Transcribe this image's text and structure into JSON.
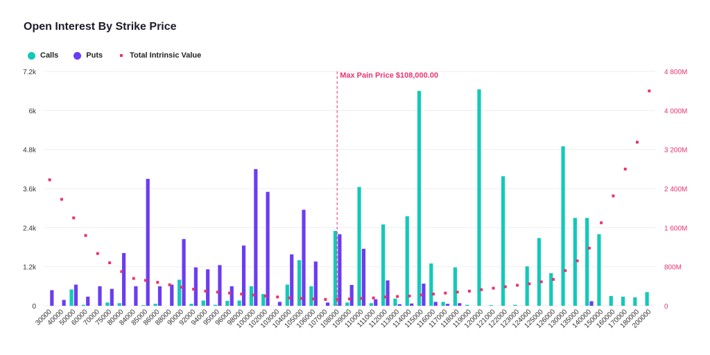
{
  "chart_data": {
    "type": "bar",
    "title": "Open Interest By Strike Price",
    "categories": [
      "30000",
      "40000",
      "50000",
      "60000",
      "70000",
      "75000",
      "80000",
      "84000",
      "85000",
      "86000",
      "88000",
      "90000",
      "92000",
      "94000",
      "95000",
      "96000",
      "98000",
      "100000",
      "102000",
      "103000",
      "104000",
      "105000",
      "106000",
      "107000",
      "108000",
      "109000",
      "110000",
      "111000",
      "112000",
      "113000",
      "114000",
      "115000",
      "116000",
      "117000",
      "118000",
      "119000",
      "120000",
      "121000",
      "122000",
      "123000",
      "124000",
      "125000",
      "126000",
      "130000",
      "135000",
      "140000",
      "150000",
      "160000",
      "170000",
      "180000",
      "200000"
    ],
    "series": [
      {
        "name": "Calls",
        "axis": "left",
        "color": "#12c9b9",
        "values": [
          0,
          0,
          500,
          30,
          0,
          100,
          80,
          0,
          20,
          60,
          0,
          800,
          60,
          160,
          30,
          150,
          160,
          600,
          360,
          0,
          650,
          1400,
          600,
          0,
          2300,
          100,
          3650,
          80,
          2500,
          220,
          2750,
          6600,
          1300,
          120,
          1180,
          30,
          6650,
          20,
          3980,
          30,
          1210,
          2080,
          1000,
          4900,
          2700,
          2700,
          2200,
          300,
          280,
          260,
          420
        ]
      },
      {
        "name": "Puts",
        "axis": "left",
        "color": "#6b3df1",
        "values": [
          480,
          180,
          650,
          280,
          600,
          520,
          1620,
          600,
          3900,
          600,
          650,
          2050,
          1180,
          1120,
          1250,
          600,
          1850,
          4200,
          3500,
          120,
          1580,
          2950,
          1360,
          100,
          2200,
          640,
          1750,
          200,
          780,
          50,
          70,
          680,
          120,
          60,
          80,
          0,
          0,
          0,
          0,
          0,
          0,
          0,
          0,
          0,
          0,
          140,
          0,
          0,
          0,
          0,
          0
        ]
      },
      {
        "name": "Total Intrinsic Value",
        "axis": "right",
        "type": "scatter",
        "color": "#e8336d",
        "values": [
          2580000000,
          2180000000,
          1800000000,
          1440000000,
          1070000000,
          880000000,
          700000000,
          560000000,
          520000000,
          480000000,
          430000000,
          380000000,
          340000000,
          300000000,
          280000000,
          260000000,
          240000000,
          220000000,
          200000000,
          180000000,
          160000000,
          150000000,
          140000000,
          130000000,
          130000000,
          140000000,
          150000000,
          160000000,
          180000000,
          190000000,
          200000000,
          220000000,
          240000000,
          260000000,
          280000000,
          300000000,
          330000000,
          360000000,
          390000000,
          420000000,
          450000000,
          490000000,
          540000000,
          720000000,
          920000000,
          1180000000,
          1700000000,
          2250000000,
          2800000000,
          3350000000,
          4400000000
        ]
      }
    ],
    "left_axis": {
      "min": 0,
      "max": 7200,
      "ticks": [
        0,
        1200,
        2400,
        3600,
        4800,
        6000,
        7200
      ],
      "tick_labels": [
        "0",
        "1.2k",
        "2.4k",
        "3.6k",
        "4.8k",
        "6k",
        "7.2k"
      ]
    },
    "right_axis": {
      "min": 0,
      "max": 4800000000,
      "ticks": [
        0,
        800000000,
        1600000000,
        2400000000,
        3200000000,
        4000000000,
        4800000000
      ],
      "tick_labels": [
        "0",
        "800M",
        "1 600M",
        "2 400M",
        "3 200M",
        "4 000M",
        "4 800M"
      ]
    },
    "annotation": {
      "label": "Max Pain Price $108,000.00",
      "category": "108000",
      "color": "#e8336d"
    },
    "grid": true,
    "legend_position": "top-left"
  },
  "legend": {
    "calls_label": "Calls",
    "puts_label": "Puts",
    "value_label": "Total Intrinsic Value"
  }
}
